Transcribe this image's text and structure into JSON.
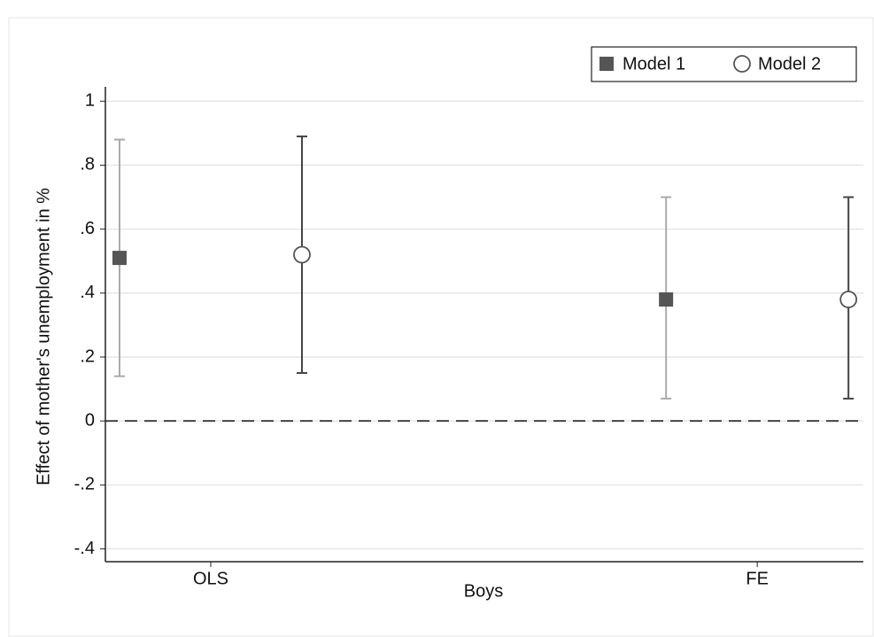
{
  "chart_data": {
    "type": "errorbar",
    "xlabel": "Boys",
    "ylabel": "Effect of mother's unemployment in %",
    "categories": [
      "OLS",
      "FE"
    ],
    "series": [
      {
        "name": "Model 1",
        "marker": "square",
        "color": "#555555",
        "ci_color": "#aaaaaa",
        "values": [
          0.51,
          0.38
        ],
        "lower": [
          0.14,
          0.07
        ],
        "upper": [
          0.88,
          0.7
        ]
      },
      {
        "name": "Model 2",
        "marker": "circle",
        "color": "#555555",
        "ci_color": "#444444",
        "values": [
          0.52,
          0.38
        ],
        "lower": [
          0.15,
          0.07
        ],
        "upper": [
          0.89,
          0.7
        ]
      }
    ],
    "ylim": [
      -0.44,
      1.045
    ],
    "yticks": [
      {
        "value": -0.4,
        "label": "-.4"
      },
      {
        "value": -0.2,
        "label": "-.2"
      },
      0,
      {
        "value": 0.2,
        "label": ".2"
      },
      {
        "value": 0.4,
        "label": ".4"
      },
      {
        "value": 0.6,
        "label": ".6"
      },
      {
        "value": 0.8,
        "label": ".8"
      },
      1
    ],
    "refline": 0,
    "grid": true,
    "legend": "top-right"
  }
}
